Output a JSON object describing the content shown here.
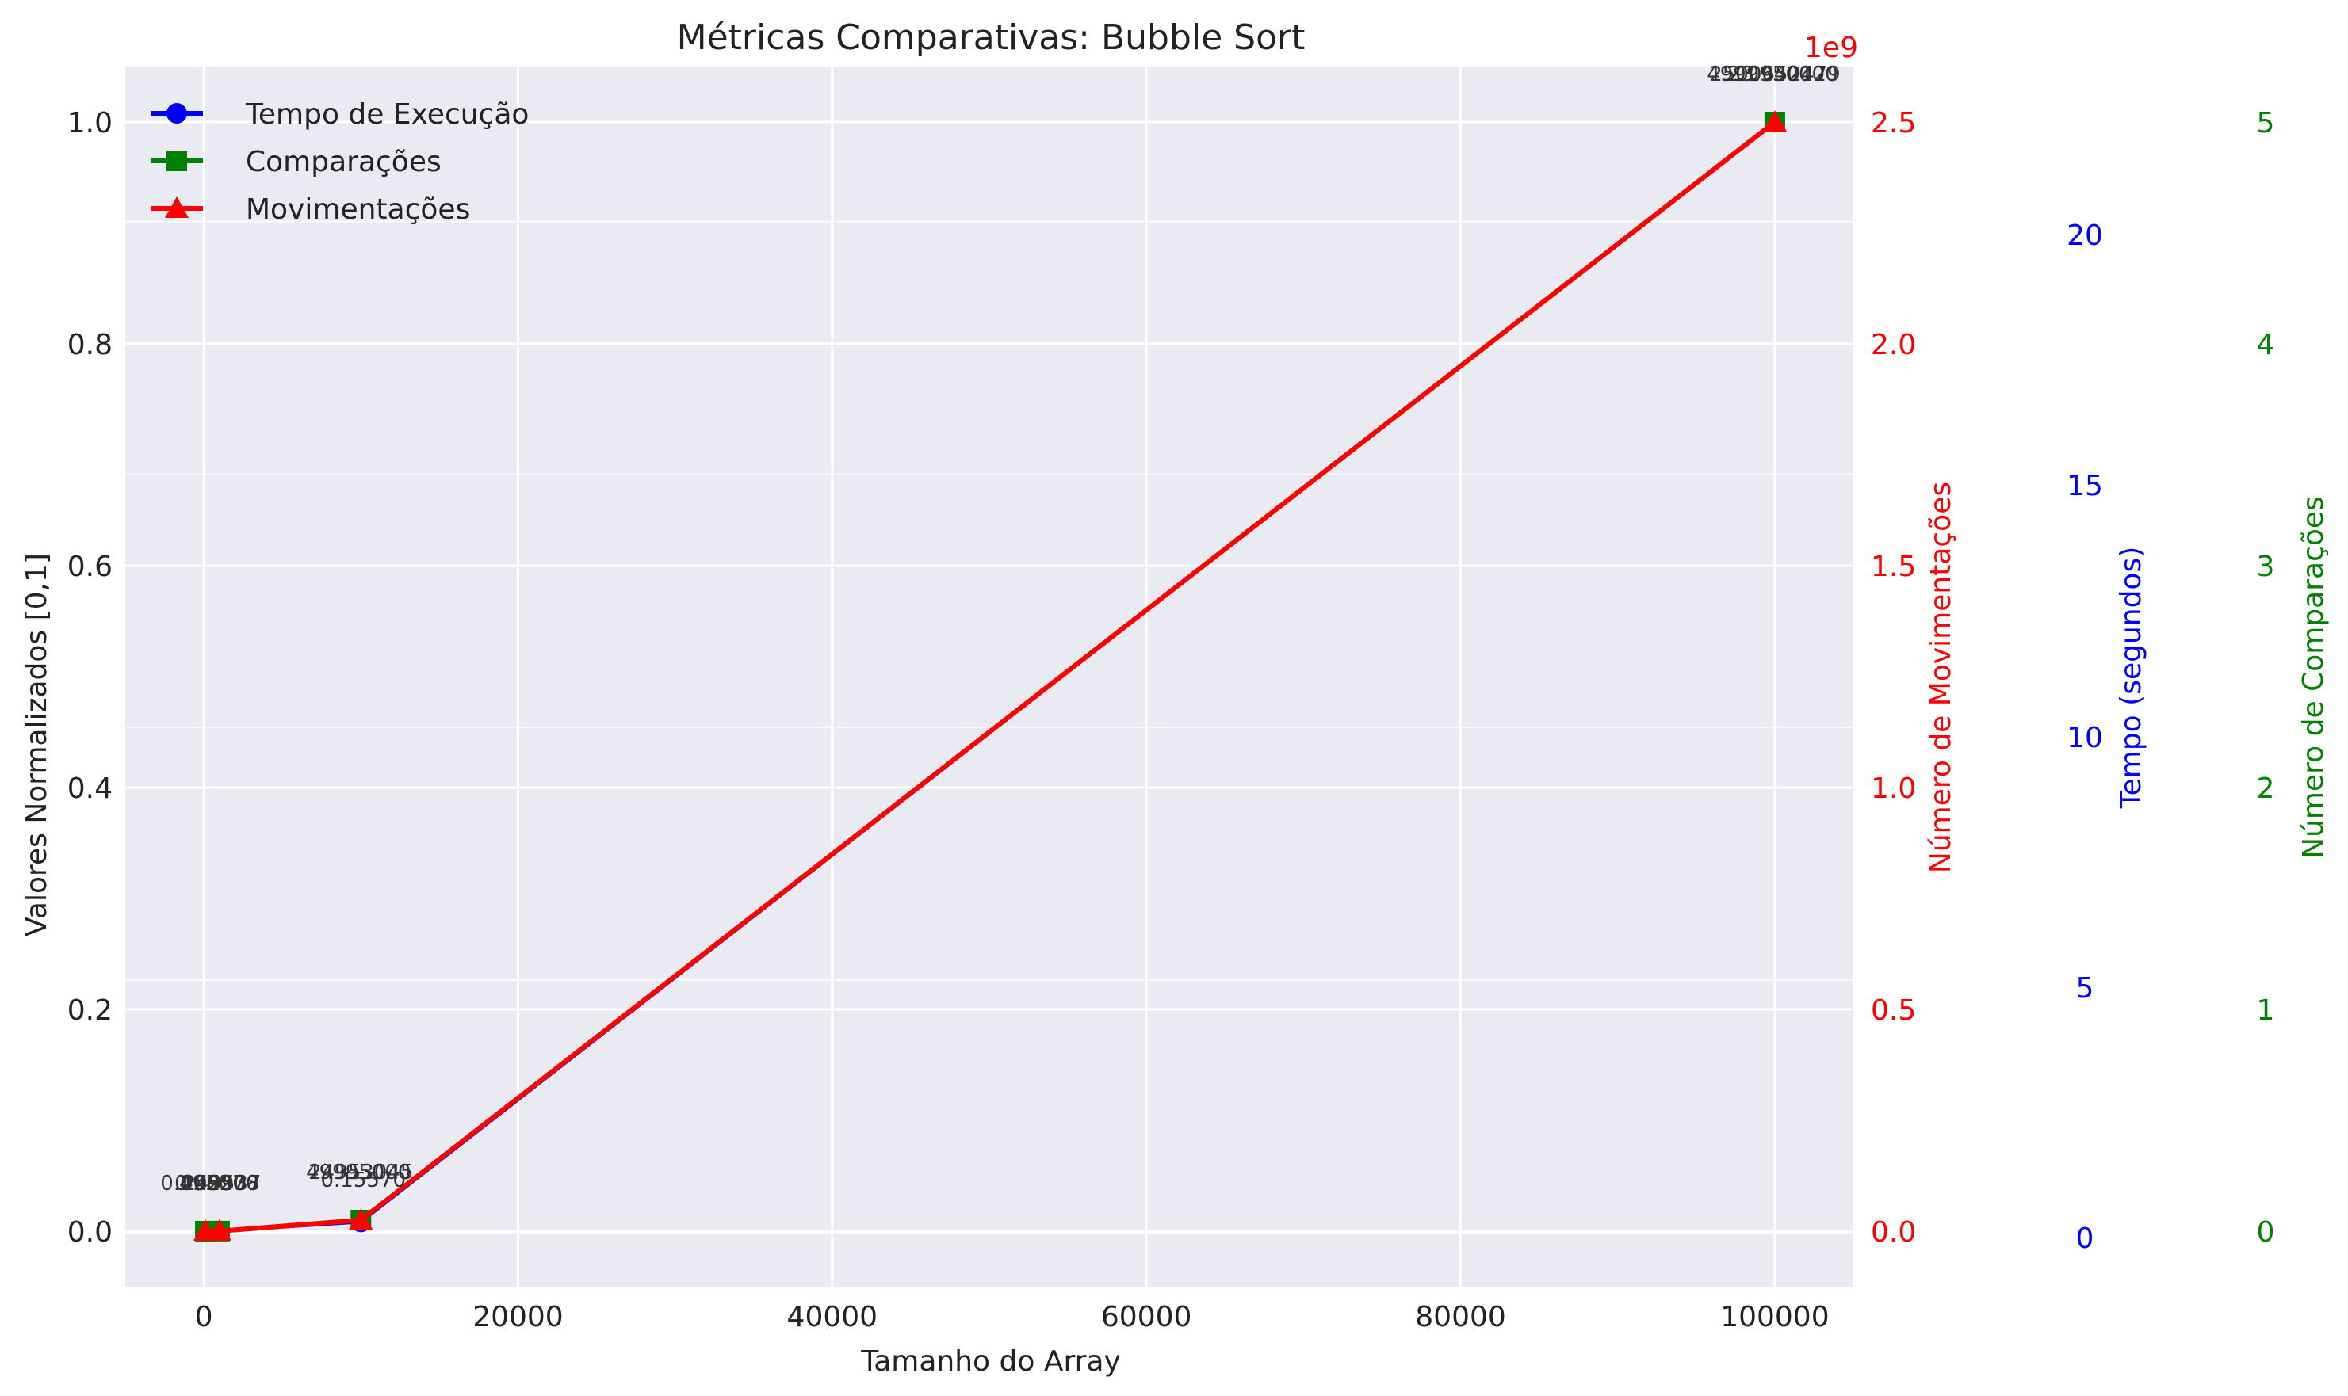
{
  "chart_data": {
    "type": "line",
    "title": "Métricas Comparativas: Bubble Sort",
    "xlabel": "Tamanho do Array",
    "ylabel": "Valores Normalizados [0,1]",
    "xlim": [
      -5000,
      105000
    ],
    "ylim": [
      -0.05,
      1.05
    ],
    "xticks": [
      0,
      20000,
      40000,
      60000,
      80000,
      100000
    ],
    "xtick_labels": [
      "0",
      "20000",
      "40000",
      "60000",
      "80000",
      "100000"
    ],
    "yticks": [
      0.0,
      0.2,
      0.4,
      0.6,
      0.8,
      1.0
    ],
    "ytick_labels": [
      "0.0",
      "0.2",
      "0.4",
      "0.6",
      "0.8",
      "1.0"
    ],
    "grid": true,
    "legend_position": "top-left",
    "x": [
      100,
      1000,
      10000,
      100000
    ],
    "series": [
      {
        "name": "Tempo de Execução",
        "marker": "circle",
        "color": "#0000ff",
        "values": [
          0.0,
          0.0002,
          0.0083,
          1.0
        ]
      },
      {
        "name": "Comparações",
        "marker": "square",
        "color": "#008000",
        "values": [
          0.0,
          0.0001,
          0.01,
          1.0
        ]
      },
      {
        "name": "Movimentações",
        "marker": "triangle",
        "color": "#ff0000",
        "values": [
          0.0,
          0.0001,
          0.01,
          1.0
        ]
      }
    ],
    "annotations": [
      {
        "x": 100,
        "y": 0.0,
        "text": "0.00027"
      },
      {
        "x": 100,
        "y": 0.0,
        "text": "4950"
      },
      {
        "x": 100,
        "y": 0.0,
        "text": "2559"
      },
      {
        "x": 1000,
        "y": 0.0,
        "text": "0.02508"
      },
      {
        "x": 1000,
        "y": 0.0,
        "text": "499500"
      },
      {
        "x": 1000,
        "y": 0.0,
        "text": "249537"
      },
      {
        "x": 10000,
        "y": 0.01,
        "text": "49995000"
      },
      {
        "x": 10000,
        "y": 0.01,
        "text": "24953045"
      },
      {
        "x": 10000,
        "y": 0.01,
        "text": "0.15570"
      },
      {
        "x": 100000,
        "y": 1.0,
        "text": "4999950000"
      },
      {
        "x": 100000,
        "y": 1.0,
        "text": "2500652479"
      },
      {
        "x": 100000,
        "y": 1.0,
        "text": "23.94012"
      }
    ],
    "secondary_axes": [
      {
        "label": "Número de Movimentações",
        "color": "#ff0000",
        "ticks": [
          "0.0",
          "0.5",
          "1.0",
          "1.5",
          "2.0",
          "2.5"
        ],
        "offset_label": "1e9"
      },
      {
        "label": "Tempo (segundos)",
        "color": "#0000ff",
        "ticks": [
          "0",
          "5",
          "10",
          "15",
          "20"
        ]
      },
      {
        "label": "Número de Comparações",
        "color": "#008000",
        "ticks": [
          "0",
          "1",
          "2",
          "3",
          "4",
          "5"
        ]
      }
    ],
    "colors": {
      "plot_background": "#eaeaf2",
      "grid": "#ffffff"
    }
  }
}
